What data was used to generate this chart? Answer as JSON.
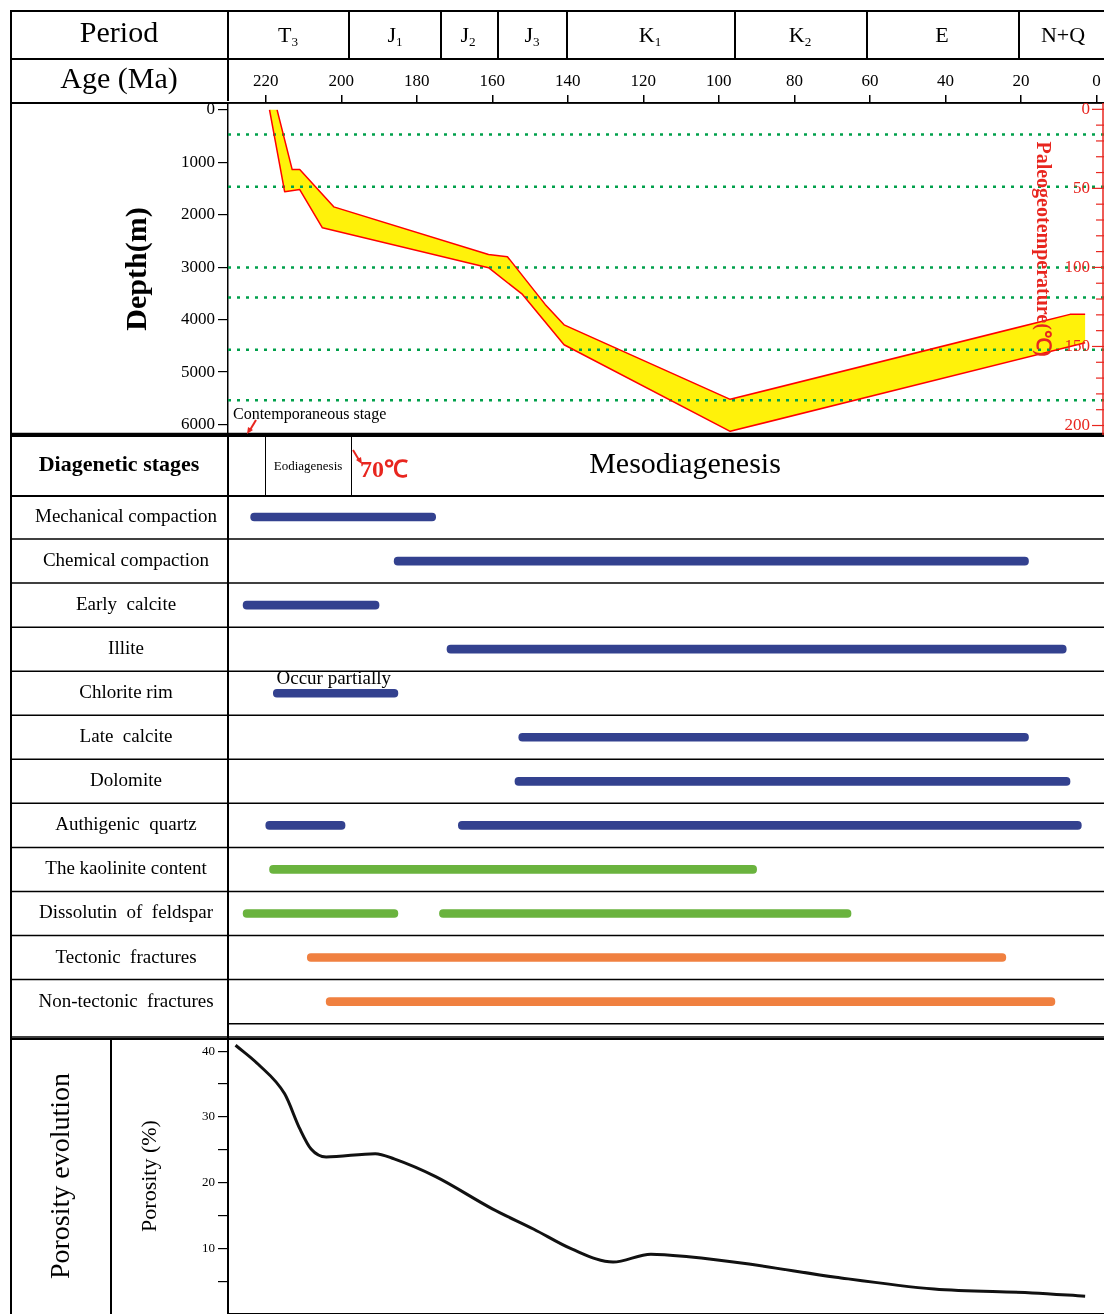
{
  "chart_data": [
    {
      "type": "line",
      "xlabel": "Age (Ma)",
      "ylabel": "Depth(m)",
      "y2label": "Paleogeotemperature(℃)",
      "xlim": [
        230,
        -2
      ],
      "xticks": [
        220,
        200,
        180,
        160,
        140,
        120,
        100,
        80,
        60,
        40,
        20,
        0
      ],
      "ylim": [
        6200,
        -130
      ],
      "yticks": [
        0,
        1000,
        2000,
        3000,
        4000,
        5000,
        6000
      ],
      "y2lim": [
        206,
        -4
      ],
      "y2ticks": [
        0,
        {
          "value": 10,
          "label": null
        },
        {
          "value": 20,
          "label": null
        },
        {
          "value": 30,
          "label": null
        },
        {
          "value": 40,
          "label": null
        },
        50,
        {
          "value": 60,
          "label": null
        },
        {
          "value": 70,
          "label": null
        },
        {
          "value": 80,
          "label": null
        },
        {
          "value": 90,
          "label": null
        },
        100,
        {
          "value": 110,
          "label": null
        },
        {
          "value": 120,
          "label": null
        },
        {
          "value": 130,
          "label": null
        },
        {
          "value": 140,
          "label": null
        },
        150,
        {
          "value": 160,
          "label": null
        },
        {
          "value": 170,
          "label": null
        },
        {
          "value": 180,
          "label": null
        },
        {
          "value": 190,
          "label": null
        },
        200
      ],
      "series": [
        {
          "color": "#ff0000",
          "x": [
            217,
            213,
            211,
            202,
            161,
            156,
            146,
            141,
            97,
            7,
            3
          ],
          "values": [
            0,
            1140,
            1140,
            1850,
            2760,
            2800,
            3710,
            4100,
            5520,
            3900,
            3900
          ]
        },
        {
          "color": "#ff0000",
          "x": [
            219,
            215,
            211,
            205,
            161,
            152,
            141,
            97,
            3
          ],
          "values": [
            0,
            1560,
            1520,
            2250,
            3010,
            3520,
            4480,
            6130,
            4440
          ]
        }
      ],
      "ref_lines": [
        {
          "axis": "y2",
          "value": 16,
          "color": "#00a04b",
          "line_style": "dotted"
        },
        {
          "axis": "y2",
          "value": 49,
          "color": "#00a04b",
          "line_style": "dotted"
        },
        {
          "axis": "y2",
          "value": 100,
          "color": "#00a04b",
          "line_style": "dotted"
        },
        {
          "axis": "y2",
          "value": 119,
          "color": "#00a04b",
          "line_style": "dotted"
        },
        {
          "axis": "y2",
          "value": 152,
          "color": "#00a04b",
          "line_style": "dotted"
        },
        {
          "axis": "y2",
          "value": 184,
          "color": "#00a04b",
          "line_style": "dotted"
        }
      ],
      "annotations": [
        "Period",
        "T$_{3}$",
        "J$_{1}$",
        "J$_{2}$",
        "J$_{3}$",
        "K$_{1}$",
        "K$_{2}$",
        "E",
        "N+Q",
        "Contemporaneous stage"
      ]
    },
    {
      "type": "bar",
      "orientation": "horizontal",
      "ylabel": "Diagenetic stages",
      "xlim": [
        230,
        -2
      ],
      "tick_labels": "y",
      "grid": "y",
      "categories": [
        "Mechanical compaction",
        "Chemical compaction",
        "Early  calcite",
        "Illite",
        "Chlorite rim",
        "Late  calcite",
        "Dolomite",
        "Authigenic  quartz",
        "The kaolinite content",
        "Dissolutin  of  feldspar",
        "Tectonic  fractures",
        "Non-tectonic  fractures"
      ],
      "series": [
        {
          "colors": [
            "#33418f",
            "#33418f",
            "#33418f",
            "#33418f",
            "#33418f",
            "#33418f",
            "#33418f",
            "#33418f",
            "#6ab33e",
            "#6ab33e",
            "#f08040",
            "#f08040"
          ],
          "base": [
            224,
            186,
            226,
            172,
            218,
            153,
            154,
            220,
            219,
            226,
            209,
            204
          ],
          "values": [
            -49,
            -168,
            -36,
            -164,
            -33,
            -135,
            -147,
            -21,
            -129,
            -41,
            -185,
            -193
          ]
        },
        {
          "colors": [
            "#33418f",
            "#33418f",
            "#33418f",
            "#33418f",
            "#33418f",
            "#33418f",
            "#33418f",
            "#33418f",
            "#6ab33e",
            "#6ab33e",
            "#f08040",
            "#f08040"
          ],
          "base": [
            null,
            null,
            null,
            null,
            null,
            null,
            null,
            169,
            null,
            174,
            null,
            null
          ],
          "values": [
            null,
            null,
            null,
            null,
            null,
            null,
            null,
            -165,
            null,
            -109,
            null,
            null
          ]
        }
      ],
      "annotations": [
        "Eodiagenesis",
        "70℃",
        "Mesodiagenesis",
        {
          "text": "Occur partially",
          "x": 202,
          "y": "Chlorite rim"
        }
      ]
    },
    {
      "type": "line",
      "title": "Porosity evolution",
      "ylabel": "Porosity (%)",
      "xlim": [
        230,
        -2
      ],
      "ylim": [
        0,
        42
      ],
      "yticks": [
        {
          "value": 5,
          "label": null
        },
        10,
        {
          "value": 15,
          "label": null
        },
        20,
        {
          "value": 25,
          "label": null
        },
        30,
        {
          "value": 35,
          "label": null
        },
        40
      ],
      "tick_labels": "y",
      "series": [
        {
          "color": "#111111",
          "x": [
            228,
            222,
            215,
            211,
            208,
            204,
            191,
            186,
            175,
            160,
            149,
            139,
            128,
            118,
            108,
            92,
            69,
            43,
            17,
            3
          ],
          "values": [
            40.9,
            38.0,
            33.5,
            28.2,
            25.1,
            23.9,
            24.4,
            23.6,
            20.9,
            16.0,
            12.9,
            9.9,
            7.9,
            9.1,
            8.7,
            7.6,
            5.6,
            3.8,
            3.2,
            2.7
          ]
        }
      ]
    }
  ]
}
